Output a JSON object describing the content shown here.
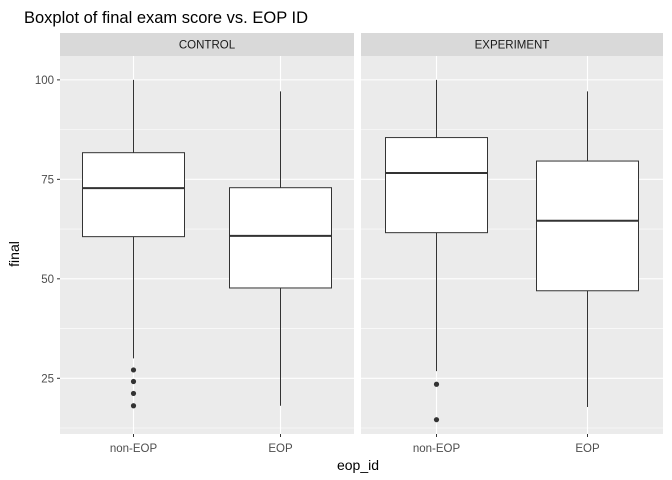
{
  "chart_data": {
    "type": "boxplot",
    "title": "Boxplot of final exam score vs. EOP ID",
    "xlabel": "eop_id",
    "ylabel": "final",
    "categories": [
      "non-EOP",
      "EOP"
    ],
    "ylim": [
      11,
      106
    ],
    "yticks": [
      25,
      50,
      75,
      100
    ],
    "grid": true,
    "panels": [
      {
        "label": "CONTROL",
        "boxes": [
          {
            "category": "non-EOP",
            "whisker_low": 30,
            "q1": 60.6,
            "median": 72.8,
            "q3": 81.7,
            "whisker_high": 100,
            "outliers": [
              27.1,
              24.2,
              21.2,
              18.1
            ]
          },
          {
            "category": "EOP",
            "whisker_low": 18.1,
            "q1": 47.7,
            "median": 60.8,
            "q3": 72.9,
            "whisker_high": 97.1,
            "outliers": []
          }
        ]
      },
      {
        "label": "EXPERIMENT",
        "boxes": [
          {
            "category": "non-EOP",
            "whisker_low": 26.8,
            "q1": 61.6,
            "median": 76.6,
            "q3": 85.5,
            "whisker_high": 100,
            "outliers": [
              23.5,
              14.6
            ]
          },
          {
            "category": "EOP",
            "whisker_low": 17.8,
            "q1": 47,
            "median": 64.6,
            "q3": 79.6,
            "whisker_high": 97.1,
            "outliers": []
          }
        ]
      }
    ]
  },
  "colors": {
    "panel_background": "#ebebeb",
    "grid_line": "#ffffff",
    "strip_background": "#d9d9d9",
    "box_fill": "#ffffff",
    "box_line": "#333333"
  }
}
